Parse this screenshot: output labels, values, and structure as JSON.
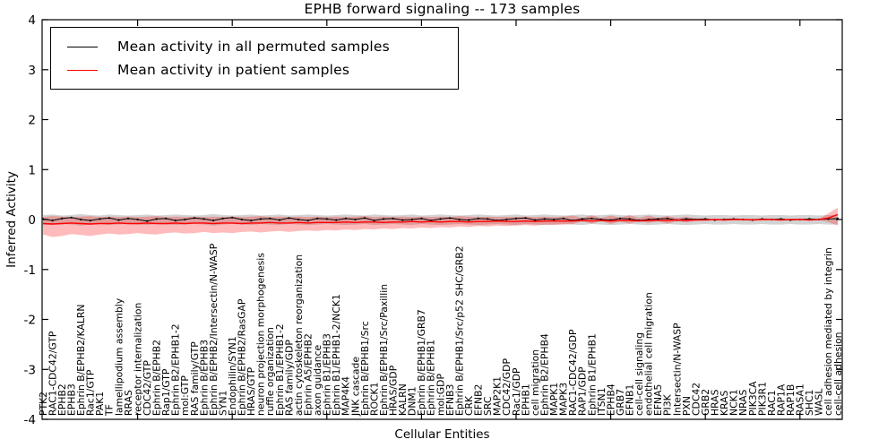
{
  "figure": {
    "title": "EPHB forward signaling -- 173 samples",
    "xlabel": "Cellular Entities",
    "ylabel": "Inferred Activity"
  },
  "legend": {
    "entries": [
      {
        "label": "Mean activity in all permuted samples",
        "color": "#000000"
      },
      {
        "label": "Mean activity in patient samples",
        "color": "#ff0000"
      }
    ]
  },
  "chart_data": {
    "type": "line",
    "title": "EPHB forward signaling -- 173 samples",
    "xlabel": "Cellular Entities",
    "ylabel": "Inferred Activity",
    "ylim": [
      -4,
      4
    ],
    "y_ticks": [
      -4,
      -3,
      -2,
      -1,
      0,
      1,
      2,
      3,
      4
    ],
    "x_major_tick_every": 10,
    "grid": false,
    "legend_position": "upper left",
    "categories": [
      "PTK2",
      "RAC1-CDC42/GTP",
      "EPHB2",
      "EPHB3",
      "Ephrin B/EPHB2/KALRN",
      "Rac1/GTP",
      "PAK1",
      "TF",
      "lamellipodium assembly",
      "RRAS",
      "receptor internalization",
      "CDC42/GTP",
      "Ephrin B/EPHB2",
      "Rap1/GTP",
      "Ephrin B2/EPHB1-2",
      "mol:GTP",
      "RAS family/GTP",
      "Ephrin B/EPHB3",
      "Ephrin B/EPHB2/Intersectin/N-WASP",
      "SYN1",
      "Endophilin/SYN1",
      "Ephrin B/EPHB2/RasGAP",
      "HRAS/GTP",
      "neuron projection morphogenesis",
      "ruffle organization",
      "Ephrin B1/EPHB1-2",
      "RAS family/GDP",
      "actin cytoskeleton reorganization",
      "Ephrin A5/EPHB2",
      "axon guidance",
      "Ephrin B1/EPHB3",
      "Ephrin B1/EPHB1-2/NCK1",
      "MAP4K4",
      "JNK cascade",
      "Ephrin B/EPHB1/Src",
      "ROCK1",
      "Ephrin B/EPHB1/Src/Paxillin",
      "HRAS/GDP",
      "KALRN",
      "DNM1",
      "Ephrin B/EPHB1/GRB7",
      "Ephrin B/EPHB1",
      "mol:GDP",
      "EFNB3",
      "Ephrin B/EPHB1/Src/p52 SHC/GRB2",
      "CRK",
      "EFNB2",
      "SRC",
      "MAP2K1",
      "CDC42/GDP",
      "Rac1/GDP",
      "EPHB1",
      "cell migration",
      "Ephrin B2/EPHB4",
      "MAPK1",
      "MAPK3",
      "RAC1-CDC42/GDP",
      "RAP1/GDP",
      "Ephrin B1/EPHB1",
      "ITSN1",
      "EPHB4",
      "GRB7",
      "EFNB1",
      "cell-cell signaling",
      "endothelial cell migration",
      "EFNA5",
      "PI3K",
      "Intersectin/N-WASP",
      "PXN",
      "CDC42",
      "GRB2",
      "HRAS",
      "KRAS",
      "NCK1",
      "NRAS",
      "PIK3CA",
      "PIK3R1",
      "RAC1",
      "RAP1A",
      "RAP1B",
      "RASA1",
      "SHC1",
      "WASL",
      "cell adhesion mediated by integrin",
      "cell-cell adhesion"
    ],
    "series": [
      {
        "name": "Mean activity in all permuted samples",
        "color": "#000000",
        "marker": "dot",
        "band_color": "rgba(130,130,130,0.35)",
        "values": [
          0.01,
          -0.02,
          0.02,
          0.04,
          0.0,
          -0.02,
          0.01,
          0.03,
          -0.01,
          0.02,
          0.0,
          -0.03,
          0.01,
          0.02,
          -0.02,
          0.0,
          0.03,
          0.01,
          -0.02,
          0.02,
          0.04,
          0.0,
          -0.02,
          0.01,
          0.02,
          -0.01,
          0.03,
          0.0,
          -0.02,
          0.02,
          0.01,
          -0.01,
          0.02,
          0.0,
          0.03,
          -0.02,
          0.01,
          0.02,
          -0.01,
          0.0,
          0.02,
          -0.02,
          0.01,
          0.03,
          0.0,
          -0.01,
          0.02,
          0.01,
          -0.02,
          0.0,
          0.02,
          0.03,
          -0.01,
          0.01,
          0.0,
          0.02,
          -0.02,
          0.01,
          0.02,
          0.0,
          -0.01,
          0.02,
          0.01,
          -0.02,
          0.0,
          0.01,
          0.02,
          -0.01,
          0.01,
          0.0,
          0.01,
          -0.01,
          0.0,
          0.01,
          0.0,
          -0.01,
          0.01,
          0.0,
          0.01,
          -0.01,
          0.0,
          0.01,
          0.0,
          0.01,
          0.02
        ],
        "band_lo": [
          -0.1,
          -0.11,
          -0.09,
          -0.1,
          -0.12,
          -0.1,
          -0.09,
          -0.11,
          -0.1,
          -0.09,
          -0.1,
          -0.11,
          -0.09,
          -0.1,
          -0.11,
          -0.1,
          -0.09,
          -0.1,
          -0.12,
          -0.1,
          -0.09,
          -0.1,
          -0.11,
          -0.09,
          -0.1,
          -0.11,
          -0.09,
          -0.1,
          -0.11,
          -0.1,
          -0.09,
          -0.1,
          -0.11,
          -0.1,
          -0.09,
          -0.11,
          -0.1,
          -0.09,
          -0.1,
          -0.11,
          -0.09,
          -0.1,
          -0.11,
          -0.1,
          -0.09,
          -0.1,
          -0.11,
          -0.1,
          -0.09,
          -0.1,
          -0.11,
          -0.09,
          -0.1,
          -0.11,
          -0.1,
          -0.09,
          -0.1,
          -0.11,
          -0.09,
          -0.1,
          -0.11,
          -0.1,
          -0.09,
          -0.1,
          -0.11,
          -0.1,
          -0.09,
          -0.1,
          -0.11,
          -0.1,
          -0.09,
          -0.1,
          -0.1,
          -0.09,
          -0.1,
          -0.1,
          -0.09,
          -0.1,
          -0.1,
          -0.09,
          -0.1,
          -0.1,
          -0.09,
          -0.1,
          -0.1
        ],
        "band_hi": [
          0.09,
          0.1,
          0.08,
          0.09,
          0.11,
          0.09,
          0.08,
          0.1,
          0.09,
          0.08,
          0.09,
          0.1,
          0.08,
          0.09,
          0.1,
          0.09,
          0.08,
          0.09,
          0.11,
          0.09,
          0.08,
          0.09,
          0.1,
          0.08,
          0.09,
          0.1,
          0.08,
          0.09,
          0.1,
          0.09,
          0.08,
          0.09,
          0.1,
          0.09,
          0.08,
          0.1,
          0.09,
          0.08,
          0.09,
          0.1,
          0.08,
          0.09,
          0.1,
          0.09,
          0.08,
          0.09,
          0.1,
          0.09,
          0.08,
          0.09,
          0.1,
          0.08,
          0.09,
          0.1,
          0.09,
          0.08,
          0.09,
          0.1,
          0.08,
          0.09,
          0.1,
          0.09,
          0.08,
          0.09,
          0.1,
          0.09,
          0.08,
          0.09,
          0.1,
          0.09,
          0.08,
          0.09,
          0.09,
          0.08,
          0.09,
          0.09,
          0.08,
          0.09,
          0.09,
          0.08,
          0.09,
          0.09,
          0.08,
          0.09,
          0.09
        ]
      },
      {
        "name": "Mean activity in patient samples",
        "color": "#ff0000",
        "marker": "none",
        "band_color": "rgba(255,30,30,0.30)",
        "values": [
          -0.08,
          -0.09,
          -0.08,
          -0.07,
          -0.08,
          -0.09,
          -0.08,
          -0.08,
          -0.07,
          -0.08,
          -0.08,
          -0.07,
          -0.08,
          -0.08,
          -0.07,
          -0.08,
          -0.07,
          -0.07,
          -0.08,
          -0.07,
          -0.07,
          -0.08,
          -0.07,
          -0.07,
          -0.06,
          -0.07,
          -0.07,
          -0.06,
          -0.07,
          -0.06,
          -0.06,
          -0.06,
          -0.05,
          -0.06,
          -0.05,
          -0.05,
          -0.06,
          -0.05,
          -0.05,
          -0.04,
          -0.05,
          -0.04,
          -0.05,
          -0.04,
          -0.04,
          -0.05,
          -0.04,
          -0.04,
          -0.03,
          -0.04,
          -0.04,
          -0.03,
          -0.04,
          -0.03,
          -0.03,
          -0.03,
          -0.03,
          -0.02,
          -0.03,
          -0.02,
          -0.03,
          -0.02,
          -0.02,
          -0.03,
          -0.02,
          -0.02,
          -0.02,
          -0.01,
          -0.02,
          -0.01,
          -0.01,
          0.0,
          -0.01,
          0.0,
          0.0,
          -0.01,
          0.0,
          0.0,
          -0.01,
          0.0,
          0.0,
          -0.01,
          0.0,
          0.03,
          0.1
        ],
        "band_lo": [
          -0.3,
          -0.35,
          -0.33,
          -0.29,
          -0.31,
          -0.33,
          -0.3,
          -0.28,
          -0.3,
          -0.29,
          -0.27,
          -0.29,
          -0.3,
          -0.27,
          -0.26,
          -0.28,
          -0.27,
          -0.25,
          -0.27,
          -0.26,
          -0.27,
          -0.25,
          -0.24,
          -0.26,
          -0.24,
          -0.23,
          -0.25,
          -0.23,
          -0.22,
          -0.23,
          -0.21,
          -0.22,
          -0.2,
          -0.21,
          -0.19,
          -0.2,
          -0.18,
          -0.19,
          -0.17,
          -0.18,
          -0.16,
          -0.17,
          -0.15,
          -0.16,
          -0.14,
          -0.15,
          -0.13,
          -0.14,
          -0.12,
          -0.13,
          -0.12,
          -0.11,
          -0.12,
          -0.1,
          -0.11,
          -0.1,
          -0.09,
          -0.04,
          -0.08,
          -0.03,
          -0.09,
          -0.04,
          -0.08,
          -0.03,
          -0.07,
          -0.03,
          -0.08,
          -0.03,
          -0.06,
          -0.02,
          -0.02,
          -0.01,
          -0.02,
          -0.01,
          -0.01,
          -0.02,
          -0.01,
          -0.01,
          -0.02,
          -0.01,
          -0.01,
          -0.02,
          -0.01,
          -0.05,
          -0.12
        ],
        "band_hi": [
          0.05,
          0.07,
          0.06,
          0.05,
          0.06,
          0.07,
          0.05,
          0.06,
          0.05,
          0.06,
          0.05,
          0.06,
          0.07,
          0.05,
          0.06,
          0.05,
          0.06,
          0.05,
          0.06,
          0.05,
          0.06,
          0.05,
          0.06,
          0.07,
          0.05,
          0.06,
          0.05,
          0.06,
          0.05,
          0.06,
          0.05,
          0.06,
          0.05,
          0.06,
          0.07,
          0.05,
          0.06,
          0.05,
          0.06,
          0.05,
          0.06,
          0.05,
          0.06,
          0.05,
          0.07,
          0.06,
          0.05,
          0.06,
          0.05,
          0.06,
          0.05,
          0.06,
          0.05,
          0.06,
          0.05,
          0.06,
          0.08,
          0.03,
          0.09,
          0.03,
          0.08,
          0.04,
          0.09,
          0.03,
          0.08,
          0.03,
          0.07,
          0.03,
          0.06,
          0.02,
          0.02,
          0.01,
          0.02,
          0.01,
          0.01,
          0.02,
          0.01,
          0.01,
          0.02,
          0.01,
          0.01,
          0.02,
          0.01,
          0.12,
          0.24
        ]
      }
    ]
  }
}
